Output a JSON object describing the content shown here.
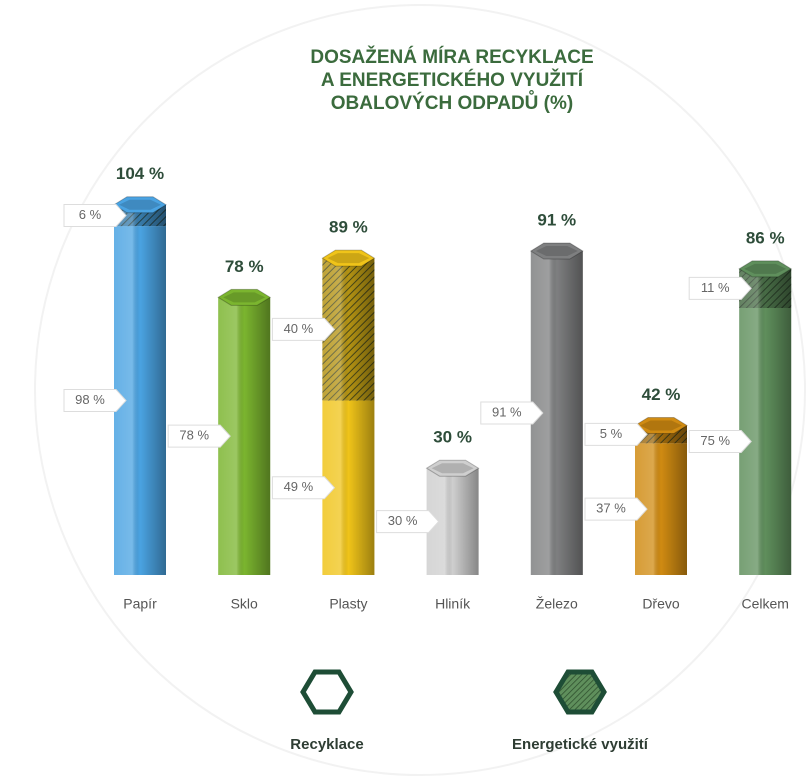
{
  "chart_data": {
    "type": "bar",
    "stacked": true,
    "title": [
      "DOSAŽENÁ MÍRA RECYKLACE",
      "A ENERGETICKÉHO VYUŽITÍ",
      "OBALOVÝCH ODPADŮ (%)"
    ],
    "categories": [
      "Papír",
      "Sklo",
      "Plasty",
      "Hliník",
      "Železo",
      "Dřevo",
      "Celkem"
    ],
    "colors": [
      "#4aa3e2",
      "#7bb52f",
      "#f0c419",
      "#cfcfcf",
      "#7e7f80",
      "#d08b12",
      "#5f8f5c"
    ],
    "series": [
      {
        "name": "Recyklace",
        "color": "#1e4d36",
        "values": [
          98,
          78,
          49,
          30,
          91,
          37,
          75
        ],
        "value_labels": [
          "98 %",
          "78 %",
          "49 %",
          "30 %",
          "91 %",
          "37 %",
          "75 %"
        ]
      },
      {
        "name": "Energetické využití",
        "color": "#1e4d36",
        "values": [
          6,
          null,
          40,
          null,
          null,
          5,
          11
        ],
        "value_labels": [
          "6 %",
          null,
          "40 %",
          null,
          null,
          "5 %",
          "11 %"
        ]
      }
    ],
    "totals": [
      104,
      78,
      89,
      30,
      91,
      42,
      86
    ],
    "total_labels": [
      "104 %",
      "78 %",
      "89 %",
      "30 %",
      "91 %",
      "42 %",
      "86 %"
    ]
  }
}
